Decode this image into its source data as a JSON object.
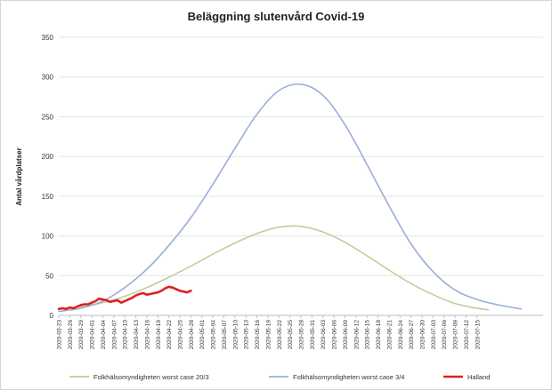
{
  "chart_data": {
    "type": "line",
    "title": "Beläggning slutenvård Covid-19",
    "ylabel": "Antal vårdplatser",
    "xlabel": "",
    "ylim": [
      0,
      350
    ],
    "yticks": [
      0,
      50,
      100,
      150,
      200,
      250,
      300,
      350
    ],
    "grid": true,
    "legend_position": "bottom",
    "x_start": "2020-03-23",
    "x_end": "2020-08-02",
    "x_ticks": [
      "2020-03-23",
      "2020-03-26",
      "2020-03-29",
      "2020-04-01",
      "2020-04-04",
      "2020-04-07",
      "2020-04-10",
      "2020-04-13",
      "2020-04-16",
      "2020-04-19",
      "2020-04-22",
      "2020-04-25",
      "2020-04-28",
      "2020-05-01",
      "2020-05-04",
      "2020-05-07",
      "2020-05-10",
      "2020-05-13",
      "2020-05-16",
      "2020-05-19",
      "2020-05-22",
      "2020-05-25",
      "2020-05-28",
      "2020-05-31",
      "2020-06-03",
      "2020-06-06",
      "2020-06-09",
      "2020-06-12",
      "2020-06-15",
      "2020-06-18",
      "2020-06-21",
      "2020-06-24",
      "2020-06-27",
      "2020-06-30",
      "2020-07-03",
      "2020-07-06",
      "2020-07-09",
      "2020-07-12",
      "2020-07-15"
    ],
    "series": [
      {
        "name": "Folkhälsomyndigheten worst case 20/3",
        "color": "#c3cc9b",
        "stroke_width": 1.6,
        "points": [
          [
            "2020-03-23",
            8
          ],
          [
            "2020-03-29",
            11
          ],
          [
            "2020-04-04",
            16
          ],
          [
            "2020-04-10",
            24
          ],
          [
            "2020-04-16",
            35
          ],
          [
            "2020-04-22",
            48
          ],
          [
            "2020-04-28",
            62
          ],
          [
            "2020-05-04",
            77
          ],
          [
            "2020-05-10",
            91
          ],
          [
            "2020-05-16",
            103
          ],
          [
            "2020-05-22",
            111
          ],
          [
            "2020-05-28",
            112
          ],
          [
            "2020-06-03",
            105
          ],
          [
            "2020-06-09",
            92
          ],
          [
            "2020-06-15",
            75
          ],
          [
            "2020-06-21",
            57
          ],
          [
            "2020-06-27",
            40
          ],
          [
            "2020-07-03",
            26
          ],
          [
            "2020-07-09",
            15
          ],
          [
            "2020-07-15",
            9
          ],
          [
            "2020-07-18",
            7
          ]
        ]
      },
      {
        "name": "Folkhälsomyndigheten worst case 3/4",
        "color": "#9aaed8",
        "stroke_width": 1.6,
        "points": [
          [
            "2020-03-23",
            5
          ],
          [
            "2020-03-29",
            9
          ],
          [
            "2020-04-04",
            18
          ],
          [
            "2020-04-10",
            35
          ],
          [
            "2020-04-16",
            58
          ],
          [
            "2020-04-22",
            88
          ],
          [
            "2020-04-28",
            123
          ],
          [
            "2020-05-04",
            165
          ],
          [
            "2020-05-10",
            210
          ],
          [
            "2020-05-16",
            253
          ],
          [
            "2020-05-22",
            283
          ],
          [
            "2020-05-28",
            291
          ],
          [
            "2020-06-03",
            277
          ],
          [
            "2020-06-09",
            240
          ],
          [
            "2020-06-15",
            190
          ],
          [
            "2020-06-21",
            138
          ],
          [
            "2020-06-27",
            90
          ],
          [
            "2020-07-03",
            55
          ],
          [
            "2020-07-09",
            32
          ],
          [
            "2020-07-15",
            20
          ],
          [
            "2020-07-21",
            13
          ],
          [
            "2020-07-27",
            8
          ]
        ]
      },
      {
        "name": "Halland",
        "color": "#e02020",
        "stroke_width": 2.6,
        "points": [
          [
            "2020-03-23",
            8
          ],
          [
            "2020-03-24",
            9
          ],
          [
            "2020-03-25",
            8
          ],
          [
            "2020-03-26",
            10
          ],
          [
            "2020-03-27",
            9
          ],
          [
            "2020-03-28",
            11
          ],
          [
            "2020-03-29",
            13
          ],
          [
            "2020-03-30",
            14
          ],
          [
            "2020-03-31",
            14
          ],
          [
            "2020-04-01",
            16
          ],
          [
            "2020-04-02",
            18
          ],
          [
            "2020-04-03",
            21
          ],
          [
            "2020-04-04",
            20
          ],
          [
            "2020-04-05",
            19
          ],
          [
            "2020-04-06",
            17
          ],
          [
            "2020-04-07",
            18
          ],
          [
            "2020-04-08",
            19
          ],
          [
            "2020-04-09",
            16
          ],
          [
            "2020-04-10",
            18
          ],
          [
            "2020-04-11",
            20
          ],
          [
            "2020-04-12",
            22
          ],
          [
            "2020-04-13",
            25
          ],
          [
            "2020-04-14",
            27
          ],
          [
            "2020-04-15",
            28
          ],
          [
            "2020-04-16",
            26
          ],
          [
            "2020-04-17",
            27
          ],
          [
            "2020-04-18",
            28
          ],
          [
            "2020-04-19",
            29
          ],
          [
            "2020-04-20",
            31
          ],
          [
            "2020-04-21",
            34
          ],
          [
            "2020-04-22",
            36
          ],
          [
            "2020-04-23",
            35
          ],
          [
            "2020-04-24",
            33
          ],
          [
            "2020-04-25",
            31
          ],
          [
            "2020-04-26",
            30
          ],
          [
            "2020-04-27",
            29
          ],
          [
            "2020-04-28",
            31
          ]
        ]
      }
    ]
  }
}
